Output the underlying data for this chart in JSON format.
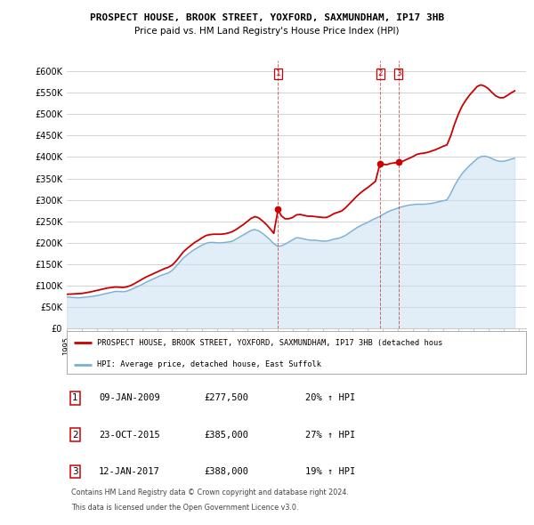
{
  "title": "PROSPECT HOUSE, BROOK STREET, YOXFORD, SAXMUNDHAM, IP17 3HB",
  "subtitle": "Price paid vs. HM Land Registry's House Price Index (HPI)",
  "yticks": [
    0,
    50000,
    100000,
    150000,
    200000,
    250000,
    300000,
    350000,
    400000,
    450000,
    500000,
    550000,
    600000
  ],
  "ylim": [
    0,
    625000
  ],
  "xlim_start": 1995.0,
  "xlim_end": 2025.5,
  "bg_color": "#ffffff",
  "grid_color": "#cccccc",
  "sale_color": "#cc0000",
  "hpi_color": "#7ab0d4",
  "hpi_fill_color": "#c5ddf0",
  "legend_sale_label": "PROSPECT HOUSE, BROOK STREET, YOXFORD, SAXMUNDHAM, IP17 3HB (detached hous",
  "legend_hpi_label": "HPI: Average price, detached house, East Suffolk",
  "annotations": [
    {
      "num": "1",
      "date": "09-JAN-2009",
      "price": "£277,500",
      "pct": "20%",
      "dir": "↑",
      "x": 2009.03
    },
    {
      "num": "2",
      "date": "23-OCT-2015",
      "price": "£385,000",
      "pct": "27%",
      "dir": "↑",
      "x": 2015.81
    },
    {
      "num": "3",
      "date": "12-JAN-2017",
      "price": "£388,000",
      "pct": "19%",
      "dir": "↑",
      "x": 2017.03
    }
  ],
  "footer1": "Contains HM Land Registry data © Crown copyright and database right 2024.",
  "footer2": "This data is licensed under the Open Government Licence v3.0.",
  "hpi_data": [
    [
      1995.0,
      74000
    ],
    [
      1995.25,
      73000
    ],
    [
      1995.5,
      72500
    ],
    [
      1995.75,
      72000
    ],
    [
      1996.0,
      72500
    ],
    [
      1996.25,
      73500
    ],
    [
      1996.5,
      74500
    ],
    [
      1996.75,
      75500
    ],
    [
      1997.0,
      77000
    ],
    [
      1997.25,
      79000
    ],
    [
      1997.5,
      81000
    ],
    [
      1997.75,
      83000
    ],
    [
      1998.0,
      85000
    ],
    [
      1998.25,
      87000
    ],
    [
      1998.5,
      86500
    ],
    [
      1998.75,
      86000
    ],
    [
      1999.0,
      87500
    ],
    [
      1999.25,
      91000
    ],
    [
      1999.5,
      95000
    ],
    [
      1999.75,
      99000
    ],
    [
      2000.0,
      103000
    ],
    [
      2000.25,
      108000
    ],
    [
      2000.5,
      112000
    ],
    [
      2000.75,
      116000
    ],
    [
      2001.0,
      120000
    ],
    [
      2001.25,
      124000
    ],
    [
      2001.5,
      127000
    ],
    [
      2001.75,
      130000
    ],
    [
      2002.0,
      136000
    ],
    [
      2002.25,
      145000
    ],
    [
      2002.5,
      155000
    ],
    [
      2002.75,
      165000
    ],
    [
      2003.0,
      172000
    ],
    [
      2003.25,
      179000
    ],
    [
      2003.5,
      185000
    ],
    [
      2003.75,
      190000
    ],
    [
      2004.0,
      195000
    ],
    [
      2004.25,
      199000
    ],
    [
      2004.5,
      201000
    ],
    [
      2004.75,
      201000
    ],
    [
      2005.0,
      200000
    ],
    [
      2005.25,
      200000
    ],
    [
      2005.5,
      201000
    ],
    [
      2005.75,
      202000
    ],
    [
      2006.0,
      204000
    ],
    [
      2006.25,
      209000
    ],
    [
      2006.5,
      214000
    ],
    [
      2006.75,
      219000
    ],
    [
      2007.0,
      224000
    ],
    [
      2007.25,
      229000
    ],
    [
      2007.5,
      231000
    ],
    [
      2007.75,
      228000
    ],
    [
      2008.0,
      222000
    ],
    [
      2008.25,
      215000
    ],
    [
      2008.5,
      207000
    ],
    [
      2008.75,
      198000
    ],
    [
      2009.0,
      192000
    ],
    [
      2009.25,
      193000
    ],
    [
      2009.5,
      197000
    ],
    [
      2009.75,
      202000
    ],
    [
      2010.0,
      207000
    ],
    [
      2010.25,
      212000
    ],
    [
      2010.5,
      211000
    ],
    [
      2010.75,
      209000
    ],
    [
      2011.0,
      207000
    ],
    [
      2011.25,
      206000
    ],
    [
      2011.5,
      206000
    ],
    [
      2011.75,
      205000
    ],
    [
      2012.0,
      204000
    ],
    [
      2012.25,
      204000
    ],
    [
      2012.5,
      206000
    ],
    [
      2012.75,
      209000
    ],
    [
      2013.0,
      210000
    ],
    [
      2013.25,
      213000
    ],
    [
      2013.5,
      217000
    ],
    [
      2013.75,
      223000
    ],
    [
      2014.0,
      229000
    ],
    [
      2014.25,
      235000
    ],
    [
      2014.5,
      240000
    ],
    [
      2014.75,
      244000
    ],
    [
      2015.0,
      248000
    ],
    [
      2015.25,
      253000
    ],
    [
      2015.5,
      257000
    ],
    [
      2015.75,
      261000
    ],
    [
      2016.0,
      266000
    ],
    [
      2016.25,
      271000
    ],
    [
      2016.5,
      275000
    ],
    [
      2016.75,
      278000
    ],
    [
      2017.0,
      281000
    ],
    [
      2017.25,
      284000
    ],
    [
      2017.5,
      286000
    ],
    [
      2017.75,
      288000
    ],
    [
      2018.0,
      289000
    ],
    [
      2018.25,
      290000
    ],
    [
      2018.5,
      290000
    ],
    [
      2018.75,
      290000
    ],
    [
      2019.0,
      291000
    ],
    [
      2019.25,
      292000
    ],
    [
      2019.5,
      294000
    ],
    [
      2019.75,
      296000
    ],
    [
      2020.0,
      298000
    ],
    [
      2020.25,
      300000
    ],
    [
      2020.5,
      315000
    ],
    [
      2020.75,
      333000
    ],
    [
      2021.0,
      348000
    ],
    [
      2021.25,
      361000
    ],
    [
      2021.5,
      371000
    ],
    [
      2021.75,
      380000
    ],
    [
      2022.0,
      388000
    ],
    [
      2022.25,
      396000
    ],
    [
      2022.5,
      401000
    ],
    [
      2022.75,
      402000
    ],
    [
      2023.0,
      400000
    ],
    [
      2023.25,
      396000
    ],
    [
      2023.5,
      392000
    ],
    [
      2023.75,
      390000
    ],
    [
      2024.0,
      390000
    ],
    [
      2024.25,
      392000
    ],
    [
      2024.5,
      395000
    ],
    [
      2024.75,
      397000
    ]
  ],
  "sale_data": [
    [
      1995.0,
      80000
    ],
    [
      1995.25,
      80500
    ],
    [
      1995.5,
      81000
    ],
    [
      1995.75,
      81500
    ],
    [
      1996.0,
      82000
    ],
    [
      1996.25,
      83500
    ],
    [
      1996.5,
      85000
    ],
    [
      1996.75,
      87000
    ],
    [
      1997.0,
      89000
    ],
    [
      1997.25,
      91000
    ],
    [
      1997.5,
      93000
    ],
    [
      1997.75,
      95000
    ],
    [
      1998.0,
      96000
    ],
    [
      1998.25,
      97000
    ],
    [
      1998.5,
      96500
    ],
    [
      1998.75,
      96000
    ],
    [
      1999.0,
      97500
    ],
    [
      1999.25,
      100500
    ],
    [
      1999.5,
      105000
    ],
    [
      1999.75,
      110000
    ],
    [
      2000.0,
      115000
    ],
    [
      2000.25,
      120000
    ],
    [
      2000.5,
      124000
    ],
    [
      2000.75,
      128000
    ],
    [
      2001.0,
      132000
    ],
    [
      2001.25,
      136000
    ],
    [
      2001.5,
      140000
    ],
    [
      2001.75,
      143000
    ],
    [
      2002.0,
      148000
    ],
    [
      2002.25,
      157000
    ],
    [
      2002.5,
      168000
    ],
    [
      2002.75,
      179000
    ],
    [
      2003.0,
      187000
    ],
    [
      2003.25,
      194000
    ],
    [
      2003.5,
      201000
    ],
    [
      2003.75,
      206000
    ],
    [
      2004.0,
      212000
    ],
    [
      2004.25,
      217000
    ],
    [
      2004.5,
      219000
    ],
    [
      2004.75,
      220000
    ],
    [
      2005.0,
      220000
    ],
    [
      2005.25,
      220000
    ],
    [
      2005.5,
      221000
    ],
    [
      2005.75,
      223000
    ],
    [
      2006.0,
      226000
    ],
    [
      2006.25,
      231000
    ],
    [
      2006.5,
      237000
    ],
    [
      2006.75,
      243000
    ],
    [
      2007.0,
      250000
    ],
    [
      2007.25,
      257000
    ],
    [
      2007.5,
      261000
    ],
    [
      2007.75,
      258000
    ],
    [
      2008.0,
      251000
    ],
    [
      2008.25,
      243000
    ],
    [
      2008.5,
      233000
    ],
    [
      2008.75,
      222000
    ],
    [
      2009.03,
      277500
    ],
    [
      2009.25,
      263000
    ],
    [
      2009.5,
      256000
    ],
    [
      2009.75,
      256000
    ],
    [
      2010.0,
      259000
    ],
    [
      2010.25,
      265000
    ],
    [
      2010.5,
      266000
    ],
    [
      2010.75,
      264000
    ],
    [
      2011.0,
      262000
    ],
    [
      2011.25,
      262000
    ],
    [
      2011.5,
      261000
    ],
    [
      2011.75,
      260000
    ],
    [
      2012.0,
      259000
    ],
    [
      2012.25,
      259000
    ],
    [
      2012.5,
      263000
    ],
    [
      2012.75,
      268000
    ],
    [
      2013.0,
      271000
    ],
    [
      2013.25,
      274000
    ],
    [
      2013.5,
      281000
    ],
    [
      2013.75,
      290000
    ],
    [
      2014.0,
      299000
    ],
    [
      2014.25,
      308000
    ],
    [
      2014.5,
      316000
    ],
    [
      2014.75,
      323000
    ],
    [
      2015.0,
      329000
    ],
    [
      2015.25,
      336000
    ],
    [
      2015.5,
      343000
    ],
    [
      2015.81,
      385000
    ],
    [
      2016.0,
      383000
    ],
    [
      2016.25,
      382000
    ],
    [
      2016.5,
      385000
    ],
    [
      2016.75,
      386000
    ],
    [
      2017.03,
      388000
    ],
    [
      2017.25,
      389000
    ],
    [
      2017.5,
      393000
    ],
    [
      2017.75,
      397000
    ],
    [
      2018.0,
      401000
    ],
    [
      2018.25,
      406000
    ],
    [
      2018.5,
      408000
    ],
    [
      2018.75,
      409000
    ],
    [
      2019.0,
      411000
    ],
    [
      2019.25,
      414000
    ],
    [
      2019.5,
      417000
    ],
    [
      2019.75,
      421000
    ],
    [
      2020.0,
      425000
    ],
    [
      2020.25,
      428000
    ],
    [
      2020.5,
      449000
    ],
    [
      2020.75,
      476000
    ],
    [
      2021.0,
      499000
    ],
    [
      2021.25,
      518000
    ],
    [
      2021.5,
      532000
    ],
    [
      2021.75,
      544000
    ],
    [
      2022.0,
      554000
    ],
    [
      2022.25,
      564000
    ],
    [
      2022.5,
      568000
    ],
    [
      2022.75,
      565000
    ],
    [
      2023.0,
      559000
    ],
    [
      2023.25,
      550000
    ],
    [
      2023.5,
      542000
    ],
    [
      2023.75,
      538000
    ],
    [
      2024.0,
      538000
    ],
    [
      2024.25,
      543000
    ],
    [
      2024.5,
      549000
    ],
    [
      2024.75,
      554000
    ]
  ]
}
